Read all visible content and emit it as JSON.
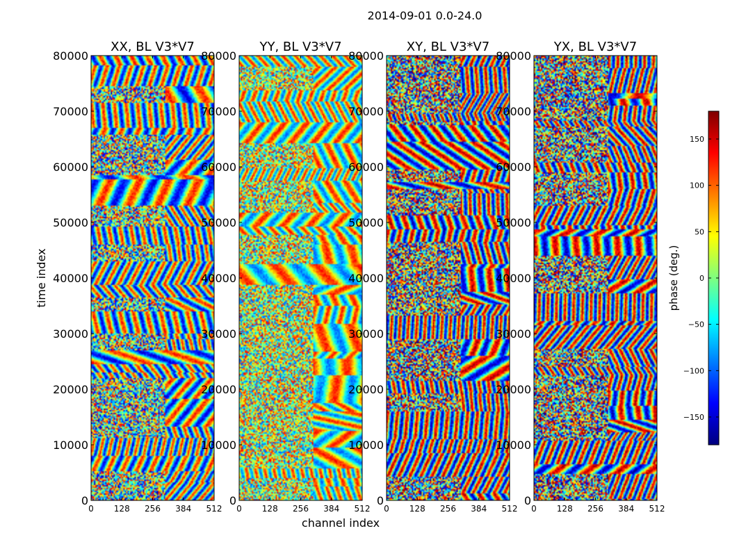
{
  "figure": {
    "suptitle": "2014-09-01 0.0-24.0",
    "xlabel": "channel index",
    "ylabel": "time index"
  },
  "colorbar": {
    "label": "phase (deg.)",
    "range": [
      -180,
      180
    ],
    "ticks": [
      "150",
      "100",
      "50",
      "0",
      "−50",
      "−100",
      "−150"
    ],
    "tick_values": [
      150,
      100,
      50,
      0,
      -50,
      -100,
      -150
    ],
    "colormap": "jet",
    "colors": [
      "#00007f",
      "#0000ff",
      "#007fff",
      "#00ffff",
      "#7fff7f",
      "#ffff00",
      "#ff7f00",
      "#ff0000",
      "#7f0000"
    ]
  },
  "chart_data": [
    {
      "type": "heatmap",
      "title": "XX, BL V3*V7",
      "xlabel": "channel index",
      "ylabel": "time index",
      "xlim": [
        0,
        512
      ],
      "ylim": [
        0,
        80000
      ],
      "xticks": [
        "0",
        "128",
        "256",
        "384",
        "512"
      ],
      "yticks": [
        "0",
        "10000",
        "20000",
        "30000",
        "40000",
        "50000",
        "60000",
        "70000",
        "80000"
      ],
      "value_range": [
        -180,
        180
      ],
      "colormap": "jet"
    },
    {
      "type": "heatmap",
      "title": "YY, BL V3*V7",
      "xlabel": "channel index",
      "ylabel": "time index",
      "xlim": [
        0,
        512
      ],
      "ylim": [
        0,
        80000
      ],
      "xticks": [
        "0",
        "128",
        "256",
        "384",
        "512"
      ],
      "yticks": [
        "0",
        "10000",
        "20000",
        "30000",
        "40000",
        "50000",
        "60000",
        "70000",
        "80000"
      ],
      "value_range": [
        -180,
        180
      ],
      "colormap": "jet"
    },
    {
      "type": "heatmap",
      "title": "XY, BL V3*V7",
      "xlabel": "channel index",
      "ylabel": "time index",
      "xlim": [
        0,
        512
      ],
      "ylim": [
        0,
        80000
      ],
      "xticks": [
        "0",
        "128",
        "256",
        "384",
        "512"
      ],
      "yticks": [
        "0",
        "10000",
        "20000",
        "30000",
        "40000",
        "50000",
        "60000",
        "70000",
        "80000"
      ],
      "value_range": [
        -180,
        180
      ],
      "colormap": "jet"
    },
    {
      "type": "heatmap",
      "title": "YX, BL V3*V7",
      "xlabel": "channel index",
      "ylabel": "time index",
      "xlim": [
        0,
        512
      ],
      "ylim": [
        0,
        80000
      ],
      "xticks": [
        "0",
        "128",
        "256",
        "384",
        "512"
      ],
      "yticks": [
        "0",
        "10000",
        "20000",
        "30000",
        "40000",
        "50000",
        "60000",
        "70000",
        "80000"
      ],
      "value_range": [
        -180,
        180
      ],
      "colormap": "jet"
    }
  ]
}
